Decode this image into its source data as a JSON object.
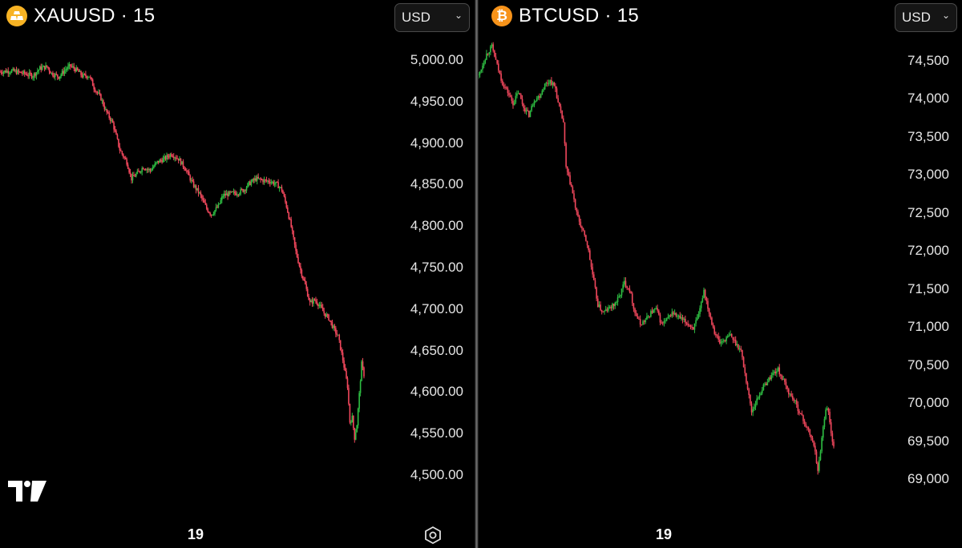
{
  "colors": {
    "up": "#2ebd42",
    "down": "#f0475c",
    "gold": "#f7b324",
    "btc": "#f7931a"
  },
  "left_panel": {
    "symbol": "XAUUSD · 15",
    "currency": "USD",
    "icon": "gold-bars-icon",
    "time_label": "19"
  },
  "right_panel": {
    "symbol": "BTCUSD · 15",
    "currency": "USD",
    "icon": "bitcoin-icon",
    "time_label": "19"
  },
  "chart_data": [
    {
      "type": "candlestick",
      "title": "XAUUSD · 15",
      "interval": "15",
      "currency": "USD",
      "ylim": [
        4480,
        5020
      ],
      "y_ticks": [
        5000,
        4950,
        4900,
        4850,
        4800,
        4750,
        4700,
        4650,
        4600,
        4550,
        4500
      ],
      "y_tick_labels": [
        "5,000.00",
        "4,950.00",
        "4,900.00",
        "4,850.00",
        "4,800.00",
        "4,750.00",
        "4,700.00",
        "4,650.00",
        "4,600.00",
        "4,550.00",
        "4,500.00"
      ],
      "x_tick_labels": [
        "19"
      ],
      "close_path": [
        [
          0,
          4987
        ],
        [
          10,
          4988
        ],
        [
          20,
          4985
        ],
        [
          28,
          4982
        ],
        [
          34,
          4991
        ],
        [
          40,
          4993
        ],
        [
          44,
          4985
        ],
        [
          50,
          4981
        ],
        [
          56,
          4990
        ],
        [
          60,
          4994
        ],
        [
          66,
          4988
        ],
        [
          70,
          4982
        ],
        [
          76,
          4982
        ],
        [
          80,
          4968
        ],
        [
          86,
          4955
        ],
        [
          90,
          4940
        ],
        [
          96,
          4925
        ],
        [
          102,
          4893
        ],
        [
          108,
          4878
        ],
        [
          112,
          4858
        ],
        [
          118,
          4866
        ],
        [
          122,
          4872
        ],
        [
          128,
          4868
        ],
        [
          134,
          4878
        ],
        [
          140,
          4882
        ],
        [
          146,
          4888
        ],
        [
          152,
          4882
        ],
        [
          158,
          4870
        ],
        [
          164,
          4852
        ],
        [
          170,
          4840
        ],
        [
          176,
          4822
        ],
        [
          180,
          4815
        ],
        [
          186,
          4825
        ],
        [
          190,
          4838
        ],
        [
          196,
          4840
        ],
        [
          202,
          4841
        ],
        [
          208,
          4845
        ],
        [
          212,
          4852
        ],
        [
          218,
          4858
        ],
        [
          224,
          4856
        ],
        [
          230,
          4855
        ],
        [
          236,
          4851
        ],
        [
          240,
          4845
        ],
        [
          244,
          4825
        ],
        [
          248,
          4800
        ],
        [
          252,
          4770
        ],
        [
          256,
          4748
        ],
        [
          260,
          4730
        ],
        [
          264,
          4708
        ],
        [
          268,
          4712
        ],
        [
          272,
          4706
        ],
        [
          276,
          4696
        ],
        [
          280,
          4690
        ],
        [
          284,
          4678
        ],
        [
          288,
          4668
        ],
        [
          292,
          4640
        ],
        [
          296,
          4608
        ],
        [
          298,
          4565
        ],
        [
          300,
          4570
        ],
        [
          302,
          4546
        ],
        [
          304,
          4562
        ],
        [
          306,
          4598
        ],
        [
          308,
          4635
        ],
        [
          310,
          4622
        ]
      ]
    },
    {
      "type": "candlestick",
      "title": "BTCUSD · 15",
      "interval": "15",
      "currency": "USD",
      "ylim": [
        68800,
        74900
      ],
      "y_ticks": [
        74500,
        74000,
        73500,
        73000,
        72500,
        72000,
        71500,
        71000,
        70500,
        70000,
        69500,
        69000
      ],
      "y_tick_labels": [
        "74,500",
        "74,000",
        "73,500",
        "73,000",
        "72,500",
        "72,000",
        "71,500",
        "71,000",
        "70,500",
        "70,000",
        "69,500",
        "69,000"
      ],
      "x_tick_labels": [
        "19"
      ],
      "close_path": [
        [
          0,
          74320
        ],
        [
          6,
          74600
        ],
        [
          10,
          74700
        ],
        [
          14,
          74450
        ],
        [
          18,
          74220
        ],
        [
          22,
          74100
        ],
        [
          26,
          73950
        ],
        [
          30,
          74100
        ],
        [
          34,
          73900
        ],
        [
          38,
          73800
        ],
        [
          42,
          74000
        ],
        [
          46,
          74050
        ],
        [
          50,
          74200
        ],
        [
          54,
          74250
        ],
        [
          58,
          74150
        ],
        [
          60,
          73950
        ],
        [
          64,
          73700
        ],
        [
          66,
          73100
        ],
        [
          70,
          72850
        ],
        [
          74,
          72500
        ],
        [
          78,
          72300
        ],
        [
          82,
          72100
        ],
        [
          86,
          71700
        ],
        [
          90,
          71300
        ],
        [
          94,
          71200
        ],
        [
          98,
          71250
        ],
        [
          102,
          71300
        ],
        [
          106,
          71400
        ],
        [
          110,
          71600
        ],
        [
          114,
          71500
        ],
        [
          118,
          71200
        ],
        [
          122,
          71050
        ],
        [
          126,
          71100
        ],
        [
          130,
          71200
        ],
        [
          134,
          71250
        ],
        [
          138,
          71050
        ],
        [
          142,
          71100
        ],
        [
          146,
          71200
        ],
        [
          150,
          71150
        ],
        [
          154,
          71100
        ],
        [
          158,
          71050
        ],
        [
          162,
          71000
        ],
        [
          166,
          71150
        ],
        [
          170,
          71500
        ],
        [
          174,
          71200
        ],
        [
          178,
          70950
        ],
        [
          182,
          70800
        ],
        [
          186,
          70850
        ],
        [
          190,
          70900
        ],
        [
          194,
          70800
        ],
        [
          198,
          70700
        ],
        [
          202,
          70300
        ],
        [
          206,
          69900
        ],
        [
          210,
          70050
        ],
        [
          214,
          70200
        ],
        [
          218,
          70300
        ],
        [
          222,
          70400
        ],
        [
          226,
          70450
        ],
        [
          230,
          70300
        ],
        [
          234,
          70150
        ],
        [
          238,
          70050
        ],
        [
          242,
          69900
        ],
        [
          246,
          69750
        ],
        [
          250,
          69600
        ],
        [
          254,
          69400
        ],
        [
          256,
          69100
        ],
        [
          258,
          69400
        ],
        [
          260,
          69700
        ],
        [
          262,
          69950
        ],
        [
          264,
          69900
        ],
        [
          266,
          69600
        ],
        [
          268,
          69450
        ]
      ]
    }
  ]
}
